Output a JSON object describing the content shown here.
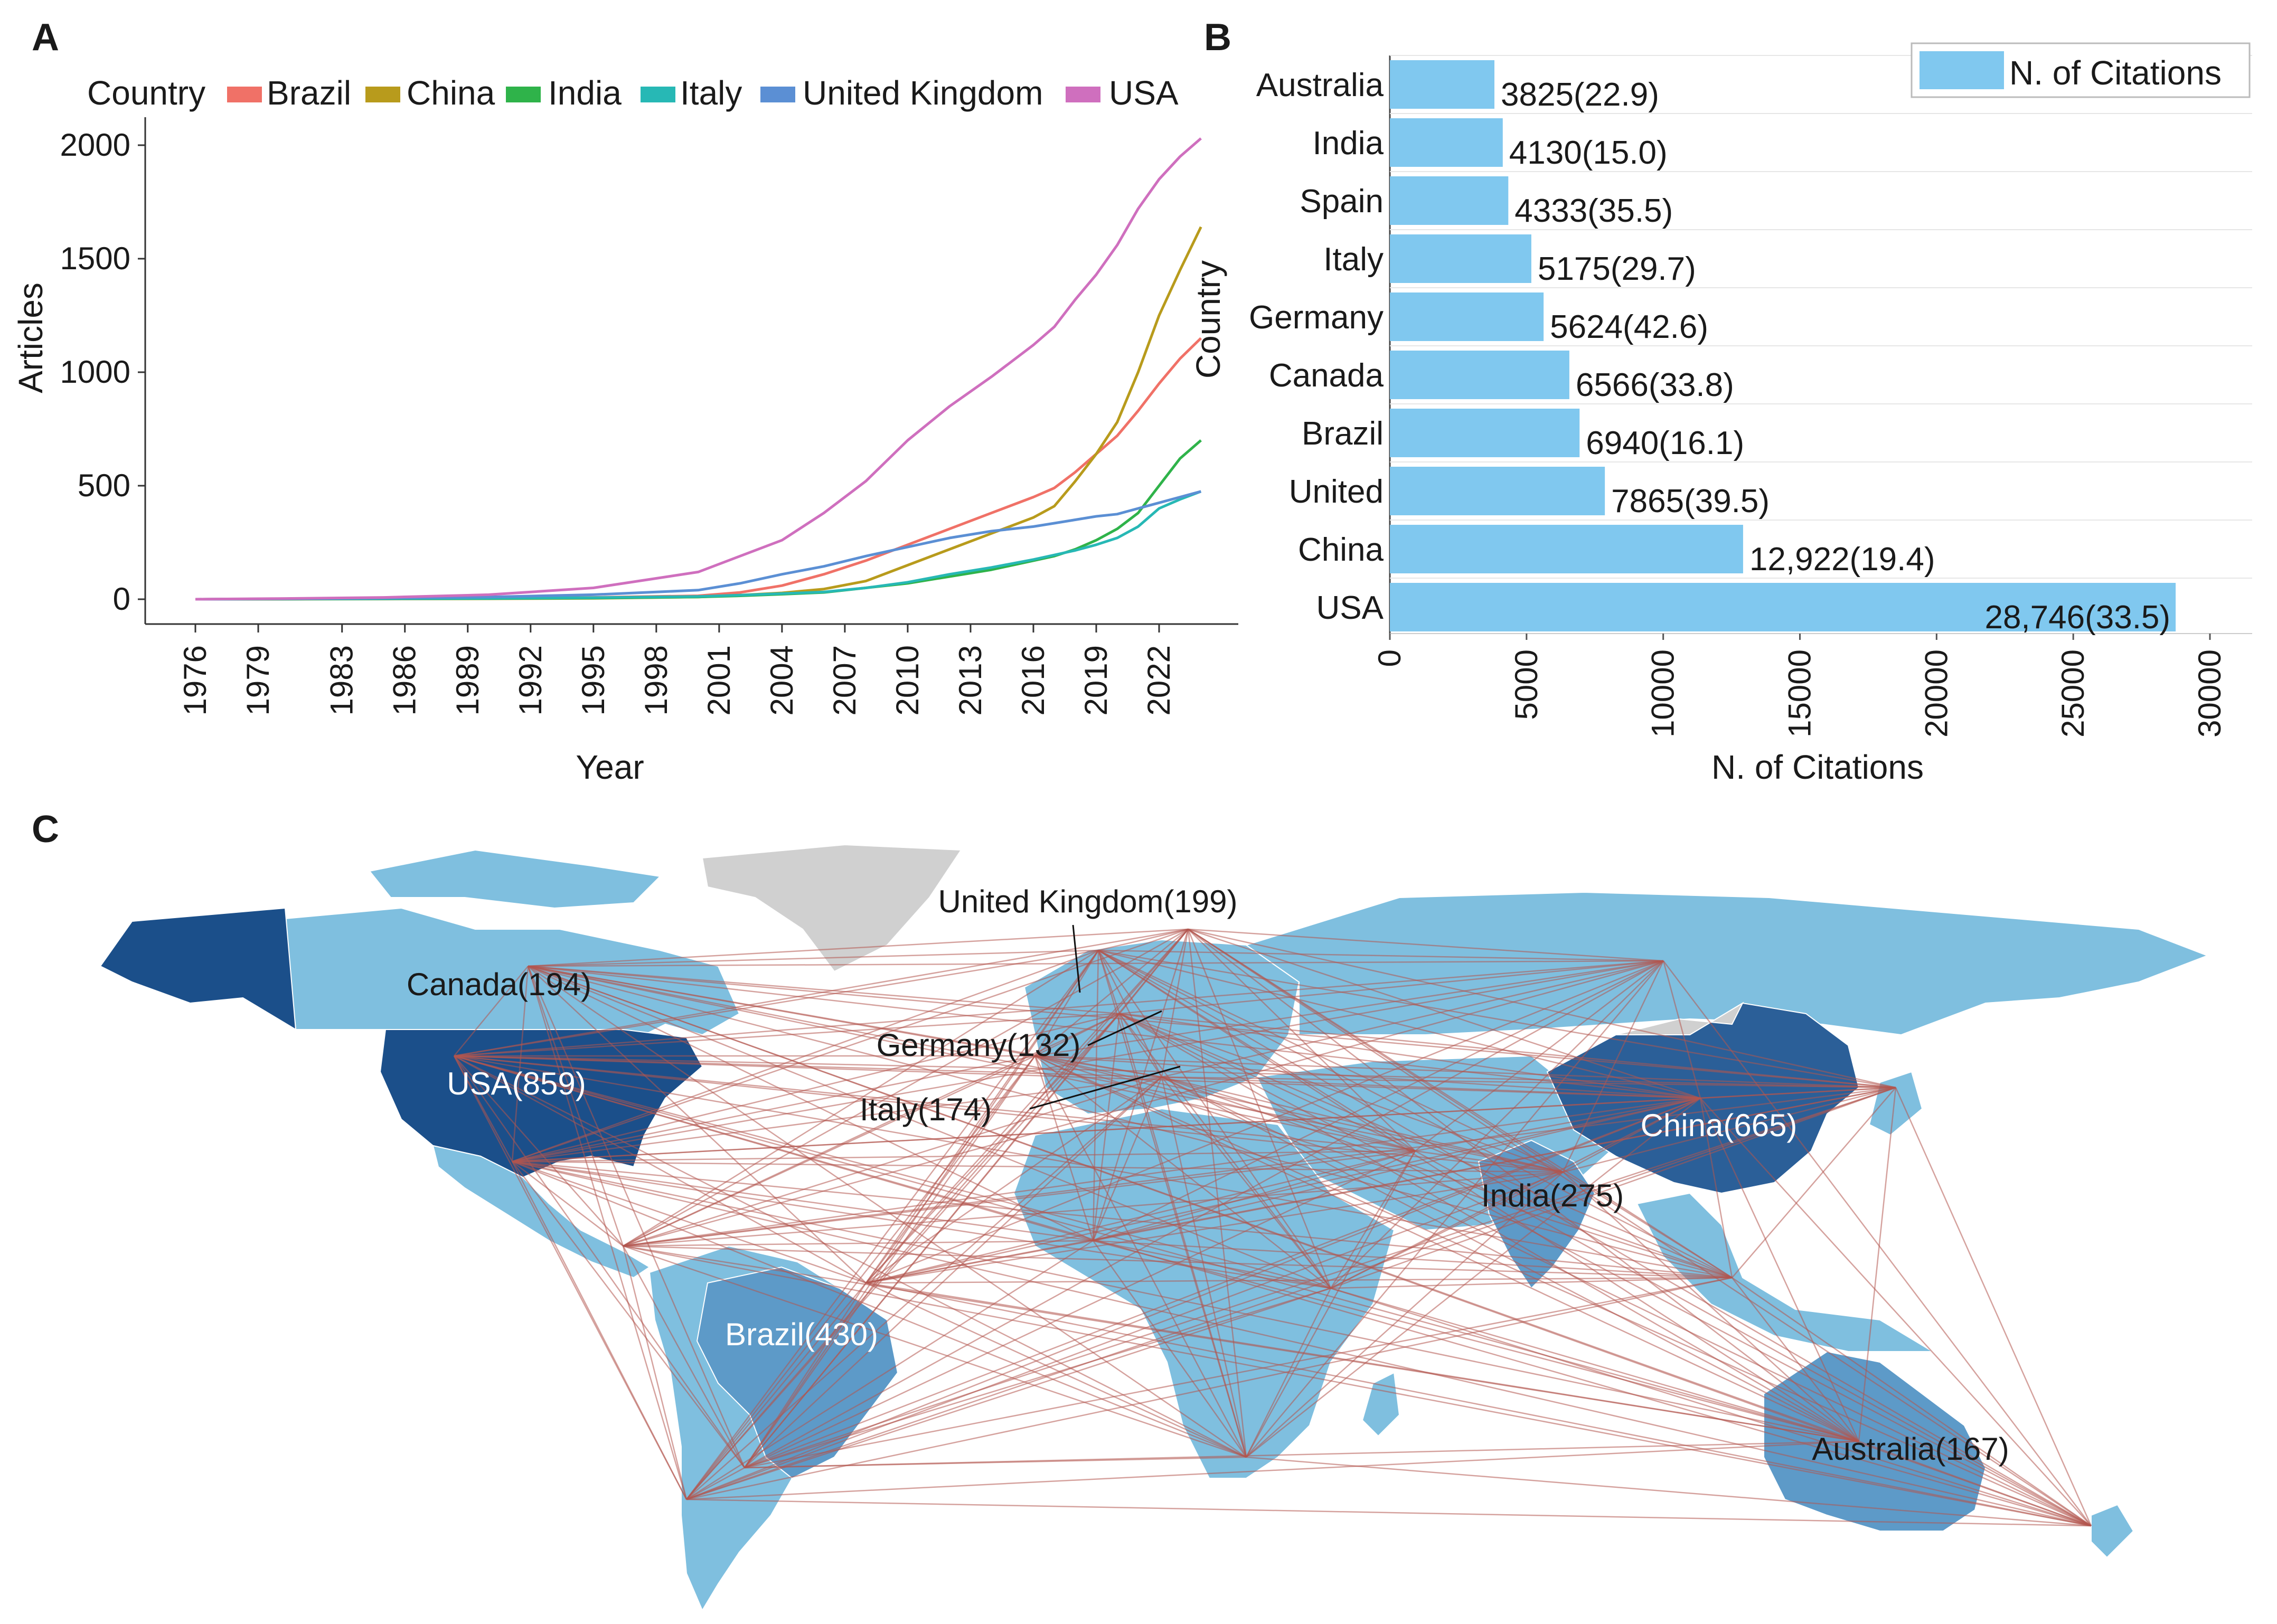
{
  "panel_labels": {
    "a": "A",
    "b": "B",
    "c": "C"
  },
  "colors": {
    "Brazil": "#f07167",
    "China": "#b89b1c",
    "India": "#2fb34a",
    "Italy": "#27b8b5",
    "United Kingdom": "#5b8fd4",
    "USA": "#cf6fbe",
    "bar": "#80c8ef",
    "land_gray": "#d0d0d0",
    "land_light": "#7fbfdf",
    "land_mid": "#5d9ac8",
    "land_dark": "#1b4f8a",
    "link": "#b2554f"
  },
  "chart_data": [
    {
      "panel": "A",
      "type": "line",
      "legend_title": "Country",
      "legend_position": "top",
      "xlabel": "Year",
      "ylabel": "Articles",
      "xlim": [
        1976,
        2024
      ],
      "ylim": [
        0,
        2100
      ],
      "x_ticks": [
        "1976",
        "1979",
        "1983",
        "1986",
        "1989",
        "1992",
        "1995",
        "1998",
        "2001",
        "2004",
        "2007",
        "2010",
        "2013",
        "2016",
        "2019",
        "2022"
      ],
      "y_ticks": [
        "0",
        "500",
        "1000",
        "1500",
        "2000"
      ],
      "grid": false,
      "x": [
        1976,
        1980,
        1985,
        1990,
        1995,
        2000,
        2002,
        2004,
        2006,
        2008,
        2010,
        2012,
        2014,
        2016,
        2017,
        2018,
        2019,
        2020,
        2021,
        2022,
        2023,
        2024
      ],
      "series": [
        {
          "name": "Brazil",
          "values": [
            0,
            1,
            3,
            5,
            8,
            15,
            30,
            60,
            110,
            170,
            240,
            310,
            380,
            450,
            490,
            560,
            640,
            720,
            830,
            950,
            1060,
            1150
          ]
        },
        {
          "name": "China",
          "values": [
            0,
            0,
            1,
            2,
            4,
            10,
            18,
            28,
            45,
            80,
            150,
            220,
            290,
            360,
            410,
            520,
            640,
            780,
            1000,
            1250,
            1450,
            1640
          ]
        },
        {
          "name": "India",
          "values": [
            0,
            1,
            2,
            3,
            5,
            10,
            15,
            22,
            30,
            50,
            70,
            100,
            130,
            170,
            190,
            220,
            260,
            310,
            380,
            500,
            620,
            700
          ]
        },
        {
          "name": "Italy",
          "values": [
            0,
            1,
            2,
            4,
            7,
            12,
            18,
            25,
            32,
            50,
            75,
            110,
            140,
            175,
            195,
            215,
            240,
            270,
            320,
            400,
            440,
            475
          ]
        },
        {
          "name": "United Kingdom",
          "values": [
            0,
            2,
            5,
            10,
            20,
            40,
            70,
            110,
            145,
            190,
            230,
            270,
            300,
            320,
            335,
            350,
            365,
            375,
            400,
            425,
            450,
            475
          ]
        },
        {
          "name": "USA",
          "values": [
            0,
            3,
            8,
            20,
            50,
            120,
            190,
            260,
            380,
            520,
            700,
            850,
            980,
            1120,
            1200,
            1320,
            1430,
            1560,
            1720,
            1850,
            1950,
            2030
          ]
        }
      ]
    },
    {
      "panel": "B",
      "type": "bar",
      "orientation": "horizontal",
      "legend": "N. of Citations",
      "legend_position": "top-right",
      "xlabel": "N. of Citations",
      "ylabel": "Country",
      "xlim": [
        0,
        32000
      ],
      "x_ticks": [
        "0",
        "5000",
        "10000",
        "15000",
        "20000",
        "25000",
        "30000"
      ],
      "categories": [
        "Australia",
        "India",
        "Spain",
        "Italy",
        "Germany",
        "Canada",
        "Brazil",
        "United",
        "China",
        "USA"
      ],
      "values": [
        3825,
        4130,
        4333,
        5175,
        5624,
        6566,
        6940,
        7865,
        12922,
        28746
      ],
      "data_labels": [
        "3825(22.9)",
        "4130(15.0)",
        "4333(35.5)",
        "5175(29.7)",
        "5624(42.6)",
        "6566(33.8)",
        "6940(16.1)",
        "7865(39.5)",
        "12,922(19.4)",
        "28,746(33.5)"
      ]
    }
  ],
  "map": {
    "labels": [
      "United Kingdom(199)",
      "Canada(194)",
      "USA(859)",
      "Germany(132)",
      "Italy(174)",
      "China(665)",
      "India(275)",
      "Brazil(430)",
      "Australia(167)"
    ]
  }
}
